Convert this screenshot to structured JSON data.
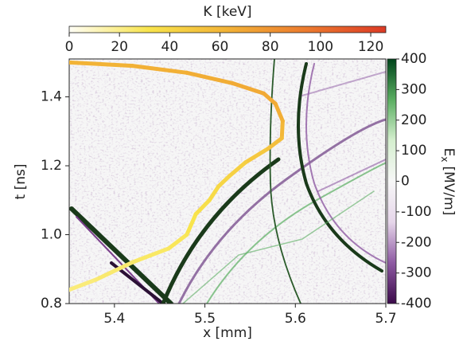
{
  "chart_data": {
    "type": "line",
    "x_label": "x [mm]",
    "y_label": "t [ns]",
    "xlim": [
      5.35,
      5.7
    ],
    "xticks": [
      5.4,
      5.5,
      5.6,
      5.7
    ],
    "ylim": [
      0.8,
      1.51
    ],
    "yticks": [
      {
        "value": 0.8,
        "label": "0.8"
      },
      {
        "value": 1.0,
        "label": "1.0"
      },
      1.2,
      1.4
    ],
    "colorbar_top": {
      "label": "K [keV]",
      "lim": [
        0,
        126
      ],
      "ticks": [
        0,
        20,
        40,
        60,
        80,
        100,
        120
      ],
      "colors": [
        "#fffef6",
        "#f8e44c",
        "#f2b236",
        "#ec7a2e",
        "#dc3a25"
      ]
    },
    "colorbar_right": {
      "symbol": "E",
      "subscript": "x",
      "units": "[MV/m]",
      "lim": [
        -400,
        400
      ],
      "ticks": [
        400,
        300,
        200,
        100,
        0,
        -100,
        -200,
        -300,
        -400
      ],
      "colors": [
        "#3b0a4a",
        "#8e5aa3",
        "#e6d6ea",
        "#f7f7f7",
        "#d5efcf",
        "#5aae61",
        "#00441b"
      ]
    },
    "series": [
      {
        "x": [
          5.35,
          5.42,
          5.48,
          5.53,
          5.565,
          5.578,
          5.586,
          5.585,
          5.57,
          5.545,
          5.527,
          5.515,
          5.505,
          5.49,
          5.48,
          5.46,
          5.42,
          5.38,
          5.35
        ],
        "values": [
          1.5,
          1.49,
          1.47,
          1.44,
          1.41,
          1.38,
          1.33,
          1.28,
          1.25,
          1.21,
          1.17,
          1.14,
          1.1,
          1.06,
          1.0,
          0.96,
          0.92,
          0.87,
          0.84
        ],
        "K": [
          62,
          63,
          65,
          67,
          68,
          67,
          63,
          57,
          52,
          46,
          42,
          40,
          36,
          33,
          30,
          28,
          26,
          24,
          22
        ]
      }
    ]
  }
}
